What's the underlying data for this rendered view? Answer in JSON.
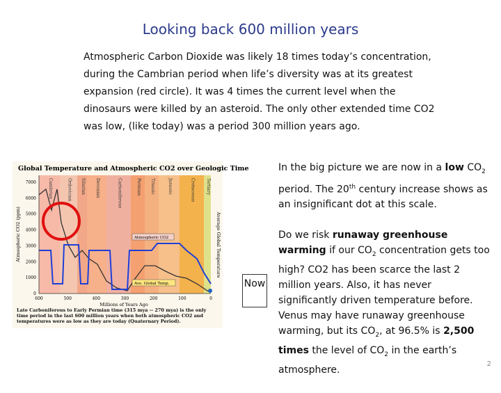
{
  "title": "Looking back 600 million years",
  "intro": "Atmospheric Carbon Dioxide was likely 18 times today’s concentration, during the Cambrian period when life’s diversity was at its greatest expansion (red circle).  It was 4 times the current level when the dinosaurs were killed by an asteroid.  The only other extended time CO2 was low, (like today) was a period 300 million years ago.",
  "figure": {
    "title": "Global Temperature and Atmospheric CO2 over Geologic Time",
    "periods": [
      "Cambrian",
      "Ordovician",
      "Silurian",
      "Devonian",
      "Carboniferous",
      "Permian",
      "Triassic",
      "Jurassic",
      "Cretaceous",
      "Tertiary"
    ],
    "y_ticks": [
      "7000",
      "6000",
      "5000",
      "4000",
      "3000",
      "2000",
      "1000",
      "0"
    ],
    "x_ticks": [
      "600",
      "500",
      "400",
      "300",
      "200",
      "100",
      "0"
    ],
    "x_label": "Millions of Years Ago",
    "y_label": "Atmospheric CO2 (ppm)",
    "y2_label": "Average Global Temperature",
    "legend": [
      "Atmospheric CO2",
      "Ave. Global Temp."
    ],
    "caption": "Late Carboniferous to Early Permian time (315 mya -- 270 mya) is the only time period in the last 600 million years when both atmospheric CO2 and temperatures were as low as they are today (Quaternary Period)."
  },
  "callout": "Now",
  "paragraphs": [
    [
      {
        "text": "In the big picture we are now in a "
      },
      {
        "text": "low",
        "format": "bold"
      },
      {
        "text": " CO"
      },
      {
        "text": "2",
        "format": "sub"
      },
      {
        "text": " period.  The 20"
      },
      {
        "text": "th",
        "format": "sup"
      },
      {
        "text": " century increase shows as an insignificant dot at this scale."
      }
    ],
    [
      {
        "text": "Do we risk "
      },
      {
        "text": "runaway greenhouse warming",
        "format": "bold"
      },
      {
        "text": " if our CO"
      },
      {
        "text": "2",
        "format": "sub"
      },
      {
        "text": " concentration gets too high? CO2 has been scarce the last 2 million years. Also, it has never significantly driven temperature before. Venus may have runaway greenhouse warming, but its CO"
      },
      {
        "text": "2",
        "format": "sub"
      },
      {
        "text": ", at 96.5% is "
      },
      {
        "text": "2,500 times",
        "format": "bold"
      },
      {
        "text": " the level of CO"
      },
      {
        "text": "2",
        "format": "sub"
      },
      {
        "text": " in the earth’s atmosphere."
      }
    ]
  ],
  "page_number": "2"
}
